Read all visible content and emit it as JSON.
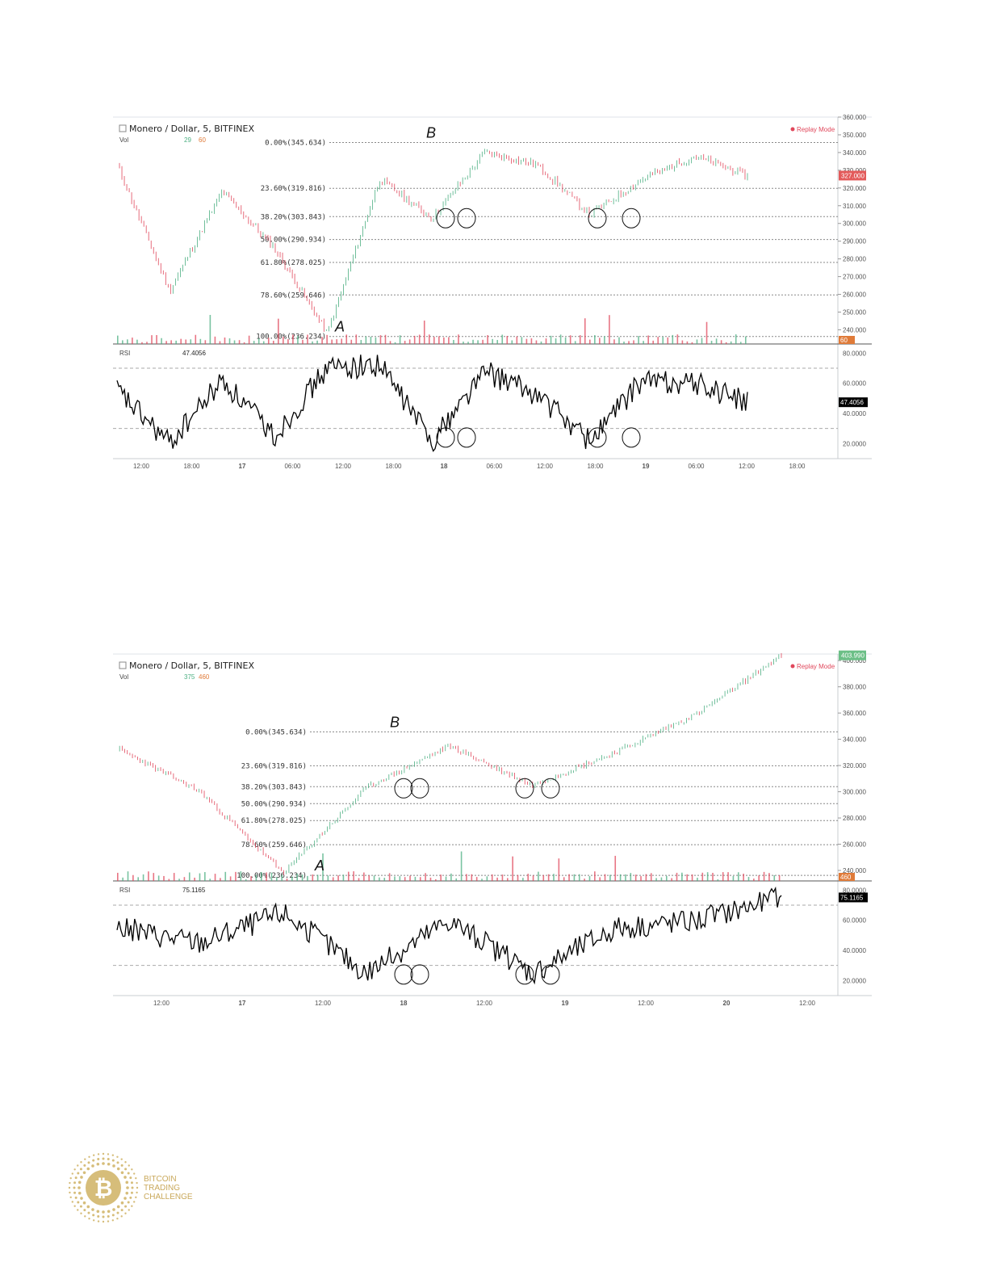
{
  "charts": [
    {
      "symbol_label": "Monero / Dollar, 5, BITFINEX",
      "replay_label": "Replay Mode",
      "vol_label": "Vol",
      "vol_values": [
        "29",
        "60"
      ],
      "rsi_label": "RSI",
      "rsi_value": "47.4056",
      "last_price": "327.000",
      "vol_badge": "60",
      "fib_levels": [
        {
          "label": "0.00%(345.634)",
          "value": 345.634
        },
        {
          "label": "23.60%(319.816)",
          "value": 319.816
        },
        {
          "label": "38.20%(303.843)",
          "value": 303.843
        },
        {
          "label": "50.00%(290.934)",
          "value": 290.934
        },
        {
          "label": "61.80%(278.025)",
          "value": 278.025
        },
        {
          "label": "78.60%(259.646)",
          "value": 259.646
        },
        {
          "label": "100.00%(236.234)",
          "value": 236.234
        }
      ],
      "price_axis": [
        "360.000",
        "350.000",
        "340.000",
        "330.000",
        "320.000",
        "310.000",
        "300.000",
        "290.000",
        "280.000",
        "270.000",
        "260.000",
        "250.000",
        "240.000"
      ],
      "rsi_axis": [
        "80.0000",
        "60.0000",
        "40.0000",
        "20.0000"
      ],
      "time_axis": [
        "12:00",
        "18:00",
        "17",
        "06:00",
        "12:00",
        "18:00",
        "18",
        "06:00",
        "12:00",
        "18:00",
        "19",
        "06:00",
        "12:00",
        "18:00"
      ],
      "annotations": [
        "A",
        "B"
      ]
    },
    {
      "symbol_label": "Monero / Dollar, 5, BITFINEX",
      "replay_label": "Replay Mode",
      "vol_label": "Vol",
      "vol_values": [
        "375",
        "460"
      ],
      "rsi_label": "RSI",
      "rsi_value": "75.1165",
      "last_price": "403.990",
      "vol_badge": "460",
      "fib_levels": [
        {
          "label": "0.00%(345.634)",
          "value": 345.634
        },
        {
          "label": "23.60%(319.816)",
          "value": 319.816
        },
        {
          "label": "38.20%(303.843)",
          "value": 303.843
        },
        {
          "label": "50.00%(290.934)",
          "value": 290.934
        },
        {
          "label": "61.80%(278.025)",
          "value": 278.025
        },
        {
          "label": "78.60%(259.646)",
          "value": 259.646
        },
        {
          "label": "100.00%(236.234)",
          "value": 236.234
        }
      ],
      "price_axis": [
        "400.000",
        "380.000",
        "360.000",
        "340.000",
        "320.000",
        "300.000",
        "280.000",
        "260.000",
        "240.000"
      ],
      "rsi_axis": [
        "80.0000",
        "60.0000",
        "40.0000",
        "20.0000"
      ],
      "time_axis": [
        "12:00",
        "17",
        "12:00",
        "18",
        "12:00",
        "19",
        "12:00",
        "20",
        "12:00"
      ],
      "annotations": [
        "A",
        "B"
      ]
    }
  ],
  "chart_data": [
    {
      "type": "line",
      "title": "Monero / Dollar, 5, BITFINEX",
      "x": [
        "16 12:00",
        "16 18:00",
        "17 00:00",
        "17 06:00",
        "17 12:00",
        "17 18:00",
        "18 00:00",
        "18 06:00",
        "18 12:00",
        "18 18:00",
        "19 00:00",
        "19 06:00",
        "19 12:00"
      ],
      "series": [
        {
          "name": "Monero / Dollar",
          "values": [
            333,
            262,
            318,
            286,
            238,
            325,
            303,
            340,
            333,
            305,
            325,
            338,
            327
          ]
        },
        {
          "name": "RSI",
          "values": [
            55,
            20,
            62,
            25,
            70,
            72,
            22,
            68,
            52,
            22,
            62,
            60,
            47.4056
          ]
        }
      ],
      "ylim": [
        232,
        360
      ],
      "rsi_ylim": [
        10,
        85
      ],
      "grid": true
    },
    {
      "type": "line",
      "title": "Monero / Dollar, 5, BITFINEX",
      "x": [
        "16 12:00",
        "17 00:00",
        "17 12:00",
        "18 00:00",
        "18 12:00",
        "19 00:00",
        "19 12:00",
        "20 00:00",
        "20 08:00"
      ],
      "series": [
        {
          "name": "Monero / Dollar",
          "values": [
            333,
            300,
            238,
            303,
            335,
            305,
            330,
            360,
            403.99
          ]
        },
        {
          "name": "RSI",
          "values": [
            55,
            45,
            65,
            25,
            60,
            25,
            55,
            60,
            75.1165
          ]
        }
      ],
      "ylim": [
        232,
        405
      ],
      "rsi_ylim": [
        10,
        85
      ],
      "grid": true
    }
  ],
  "logo": {
    "line1": "BITCOIN",
    "line2": "TRADING",
    "line3": "CHALLENGE"
  },
  "colors": {
    "up": "#4caf82",
    "down": "#e0475b",
    "rsi": "#000000",
    "price_badge_1": "#e35b5b",
    "price_badge_2": "#6bbf86",
    "vol_orange": "#e07b39",
    "gold": "#c9a85a"
  }
}
